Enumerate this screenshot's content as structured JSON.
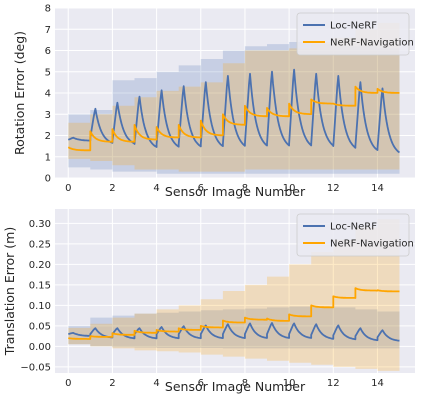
{
  "colors": {
    "plot_bg": "#eaeaf2",
    "grid": "#ffffff",
    "loc_nerf": "#4c72b0",
    "nerf_nav": "#ffa500"
  },
  "chart_data": [
    {
      "type": "line",
      "xlabel": "Sensor Image Number",
      "ylabel": "Rotation Error (deg)",
      "xlim": [
        -0.6,
        15.7
      ],
      "ylim": [
        0,
        8
      ],
      "xticks": [
        "0",
        "2",
        "4",
        "6",
        "8",
        "10",
        "12",
        "14"
      ],
      "yticks": [
        "0",
        "1",
        "2",
        "3",
        "4",
        "5",
        "6",
        "7",
        "8"
      ],
      "grid": true,
      "legend": "top-right",
      "series": [
        {
          "name": "Loc-NeRF",
          "color": "#4c72b0",
          "segments": [
            {
              "start": 1.8,
              "peak": 1.9,
              "end": 1.75,
              "band_lo": 0.5,
              "band_hi": 3.0
            },
            {
              "start": 1.9,
              "peak": 3.3,
              "end": 1.55,
              "band_lo": 0.4,
              "band_hi": 3.2
            },
            {
              "start": 1.7,
              "peak": 3.6,
              "end": 1.5,
              "band_lo": 0.3,
              "band_hi": 4.6
            },
            {
              "start": 1.6,
              "peak": 3.9,
              "end": 1.3,
              "band_lo": 0.3,
              "band_hi": 4.7
            },
            {
              "start": 1.6,
              "peak": 4.2,
              "end": 1.3,
              "band_lo": 0.2,
              "band_hi": 5.0
            },
            {
              "start": 1.6,
              "peak": 4.4,
              "end": 1.3,
              "band_lo": 0.2,
              "band_hi": 5.3
            },
            {
              "start": 1.6,
              "peak": 4.6,
              "end": 1.3,
              "band_lo": 0.2,
              "band_hi": 5.6
            },
            {
              "start": 1.6,
              "peak": 4.9,
              "end": 1.3,
              "band_lo": 0.2,
              "band_hi": 6.0
            },
            {
              "start": 1.6,
              "peak": 5.0,
              "end": 1.3,
              "band_lo": 0.2,
              "band_hi": 6.2
            },
            {
              "start": 1.6,
              "peak": 5.1,
              "end": 1.3,
              "band_lo": 0.2,
              "band_hi": 6.3
            },
            {
              "start": 1.6,
              "peak": 5.2,
              "end": 1.3,
              "band_lo": 0.2,
              "band_hi": 6.4
            },
            {
              "start": 1.6,
              "peak": 5.0,
              "end": 1.3,
              "band_lo": 0.2,
              "band_hi": 6.3
            },
            {
              "start": 1.5,
              "peak": 4.9,
              "end": 1.2,
              "band_lo": 0.2,
              "band_hi": 6.2
            },
            {
              "start": 1.5,
              "peak": 4.6,
              "end": 1.1,
              "band_lo": 0.2,
              "band_hi": 6.2
            },
            {
              "start": 1.4,
              "peak": 4.3,
              "end": 1.0,
              "band_lo": 0.2,
              "band_hi": 6.1
            }
          ]
        },
        {
          "name": "NeRF-Navigation",
          "color": "#ffa500",
          "segments": [
            {
              "start": 1.45,
              "peak": 1.45,
              "end": 1.3,
              "band_lo": 0.9,
              "band_hi": 2.6
            },
            {
              "start": 2.2,
              "peak": 2.2,
              "end": 1.7,
              "band_lo": 0.8,
              "band_hi": 3.0
            },
            {
              "start": 2.3,
              "peak": 2.3,
              "end": 1.7,
              "band_lo": 0.6,
              "band_hi": 3.4
            },
            {
              "start": 2.5,
              "peak": 2.5,
              "end": 1.8,
              "band_lo": 0.4,
              "band_hi": 3.8
            },
            {
              "start": 2.4,
              "peak": 2.4,
              "end": 1.9,
              "band_lo": 0.4,
              "band_hi": 4.1
            },
            {
              "start": 2.5,
              "peak": 2.5,
              "end": 1.9,
              "band_lo": 0.3,
              "band_hi": 4.3
            },
            {
              "start": 2.7,
              "peak": 2.7,
              "end": 2.0,
              "band_lo": 0.3,
              "band_hi": 4.5
            },
            {
              "start": 3.0,
              "peak": 3.0,
              "end": 2.5,
              "band_lo": 0.3,
              "band_hi": 5.4
            },
            {
              "start": 3.4,
              "peak": 3.4,
              "end": 2.9,
              "band_lo": 0.4,
              "band_hi": 6.0
            },
            {
              "start": 3.3,
              "peak": 3.3,
              "end": 2.9,
              "band_lo": 0.4,
              "band_hi": 6.0
            },
            {
              "start": 3.5,
              "peak": 3.5,
              "end": 3.0,
              "band_lo": 0.4,
              "band_hi": 6.1
            },
            {
              "start": 3.7,
              "peak": 3.7,
              "end": 3.5,
              "band_lo": 0.4,
              "band_hi": 6.4
            },
            {
              "start": 3.5,
              "peak": 3.5,
              "end": 3.4,
              "band_lo": 0.4,
              "band_hi": 6.6
            },
            {
              "start": 4.3,
              "peak": 4.3,
              "end": 4.0,
              "band_lo": 0.4,
              "band_hi": 7.0
            },
            {
              "start": 4.2,
              "peak": 4.2,
              "end": 4.0,
              "band_lo": 0.4,
              "band_hi": 7.3
            }
          ]
        }
      ]
    },
    {
      "type": "line",
      "xlabel": "Sensor Image Number",
      "ylabel": "Translation Error (m)",
      "xlim": [
        -0.6,
        15.7
      ],
      "ylim": [
        -0.065,
        0.335
      ],
      "xticks": [
        "0",
        "2",
        "4",
        "6",
        "8",
        "10",
        "12",
        "14"
      ],
      "yticks": [
        "−0.05",
        "0.00",
        "0.05",
        "0.10",
        "0.15",
        "0.20",
        "0.25",
        "0.30"
      ],
      "grid": true,
      "legend": "top-right",
      "series": [
        {
          "name": "Loc-NeRF",
          "color": "#4c72b0",
          "segments": [
            {
              "start": 0.03,
              "peak": 0.033,
              "end": 0.025,
              "band_lo": 0.005,
              "band_hi": 0.05
            },
            {
              "start": 0.03,
              "peak": 0.045,
              "end": 0.02,
              "band_lo": 0.0,
              "band_hi": 0.07
            },
            {
              "start": 0.03,
              "peak": 0.045,
              "end": 0.018,
              "band_lo": -0.002,
              "band_hi": 0.075
            },
            {
              "start": 0.03,
              "peak": 0.045,
              "end": 0.018,
              "band_lo": -0.003,
              "band_hi": 0.08
            },
            {
              "start": 0.03,
              "peak": 0.048,
              "end": 0.018,
              "band_lo": -0.004,
              "band_hi": 0.082
            },
            {
              "start": 0.03,
              "peak": 0.05,
              "end": 0.018,
              "band_lo": -0.004,
              "band_hi": 0.085
            },
            {
              "start": 0.03,
              "peak": 0.052,
              "end": 0.018,
              "band_lo": -0.004,
              "band_hi": 0.088
            },
            {
              "start": 0.03,
              "peak": 0.055,
              "end": 0.018,
              "band_lo": -0.005,
              "band_hi": 0.09
            },
            {
              "start": 0.03,
              "peak": 0.057,
              "end": 0.018,
              "band_lo": -0.005,
              "band_hi": 0.092
            },
            {
              "start": 0.03,
              "peak": 0.058,
              "end": 0.018,
              "band_lo": -0.005,
              "band_hi": 0.095
            },
            {
              "start": 0.03,
              "peak": 0.057,
              "end": 0.018,
              "band_lo": -0.005,
              "band_hi": 0.097
            },
            {
              "start": 0.028,
              "peak": 0.055,
              "end": 0.016,
              "band_lo": -0.005,
              "band_hi": 0.097
            },
            {
              "start": 0.027,
              "peak": 0.052,
              "end": 0.015,
              "band_lo": -0.005,
              "band_hi": 0.095
            },
            {
              "start": 0.025,
              "peak": 0.045,
              "end": 0.013,
              "band_lo": -0.005,
              "band_hi": 0.09
            },
            {
              "start": 0.022,
              "peak": 0.04,
              "end": 0.012,
              "band_lo": -0.005,
              "band_hi": 0.085
            }
          ]
        },
        {
          "name": "NeRF-Navigation",
          "color": "#ffa500",
          "segments": [
            {
              "start": 0.02,
              "peak": 0.02,
              "end": 0.018,
              "band_lo": 0.005,
              "band_hi": 0.045
            },
            {
              "start": 0.025,
              "peak": 0.025,
              "end": 0.023,
              "band_lo": 0.0,
              "band_hi": 0.055
            },
            {
              "start": 0.032,
              "peak": 0.032,
              "end": 0.028,
              "band_lo": -0.005,
              "band_hi": 0.07
            },
            {
              "start": 0.038,
              "peak": 0.038,
              "end": 0.033,
              "band_lo": -0.01,
              "band_hi": 0.08
            },
            {
              "start": 0.04,
              "peak": 0.04,
              "end": 0.036,
              "band_lo": -0.012,
              "band_hi": 0.09
            },
            {
              "start": 0.044,
              "peak": 0.044,
              "end": 0.04,
              "band_lo": -0.015,
              "band_hi": 0.1
            },
            {
              "start": 0.05,
              "peak": 0.05,
              "end": 0.046,
              "band_lo": -0.02,
              "band_hi": 0.115
            },
            {
              "start": 0.063,
              "peak": 0.063,
              "end": 0.058,
              "band_lo": -0.025,
              "band_hi": 0.135
            },
            {
              "start": 0.07,
              "peak": 0.07,
              "end": 0.065,
              "band_lo": -0.03,
              "band_hi": 0.15
            },
            {
              "start": 0.068,
              "peak": 0.068,
              "end": 0.062,
              "band_lo": -0.035,
              "band_hi": 0.17
            },
            {
              "start": 0.078,
              "peak": 0.078,
              "end": 0.073,
              "band_lo": -0.04,
              "band_hi": 0.2
            },
            {
              "start": 0.1,
              "peak": 0.1,
              "end": 0.095,
              "band_lo": -0.045,
              "band_hi": 0.23
            },
            {
              "start": 0.122,
              "peak": 0.122,
              "end": 0.118,
              "band_lo": -0.05,
              "band_hi": 0.26
            },
            {
              "start": 0.142,
              "peak": 0.142,
              "end": 0.136,
              "band_lo": -0.055,
              "band_hi": 0.29
            },
            {
              "start": 0.137,
              "peak": 0.137,
              "end": 0.134,
              "band_lo": -0.06,
              "band_hi": 0.31
            }
          ]
        }
      ]
    }
  ]
}
